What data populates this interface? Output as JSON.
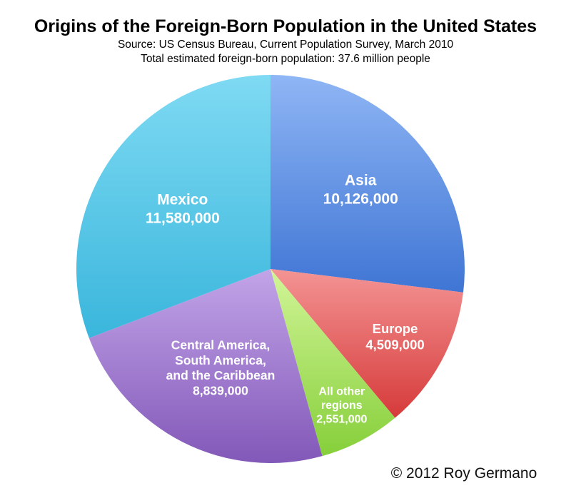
{
  "chart_data": {
    "type": "pie",
    "title": "Origins of the Foreign-Born Population in the United States",
    "subtitle_lines": [
      "Source: US Census Bureau, Current Population Survey, March 2010",
      "Total estimated foreign-born population: 37.6 million people"
    ],
    "credit": "© 2012 Roy Germano",
    "slices": [
      {
        "label_lines": [
          "Asia",
          "10,126,000"
        ],
        "value": 10126000,
        "color_light": "#8fb6f5",
        "color_dark": "#3f75d4"
      },
      {
        "label_lines": [
          "Europe",
          "4,509,000"
        ],
        "value": 4509000,
        "color_light": "#f49494",
        "color_dark": "#d63a3a"
      },
      {
        "label_lines": [
          "All other",
          "regions",
          "2,551,000"
        ],
        "value": 2551000,
        "color_light": "#d2f598",
        "color_dark": "#86cf3a"
      },
      {
        "label_lines": [
          "Central America,",
          "South America,",
          "and the Caribbean",
          "8,839,000"
        ],
        "value": 8839000,
        "color_light": "#c2a4e8",
        "color_dark": "#8258b8"
      },
      {
        "label_lines": [
          "Mexico",
          "11,580,000"
        ],
        "value": 11580000,
        "color_light": "#7fdaf3",
        "color_dark": "#3ab6dc"
      }
    ]
  }
}
